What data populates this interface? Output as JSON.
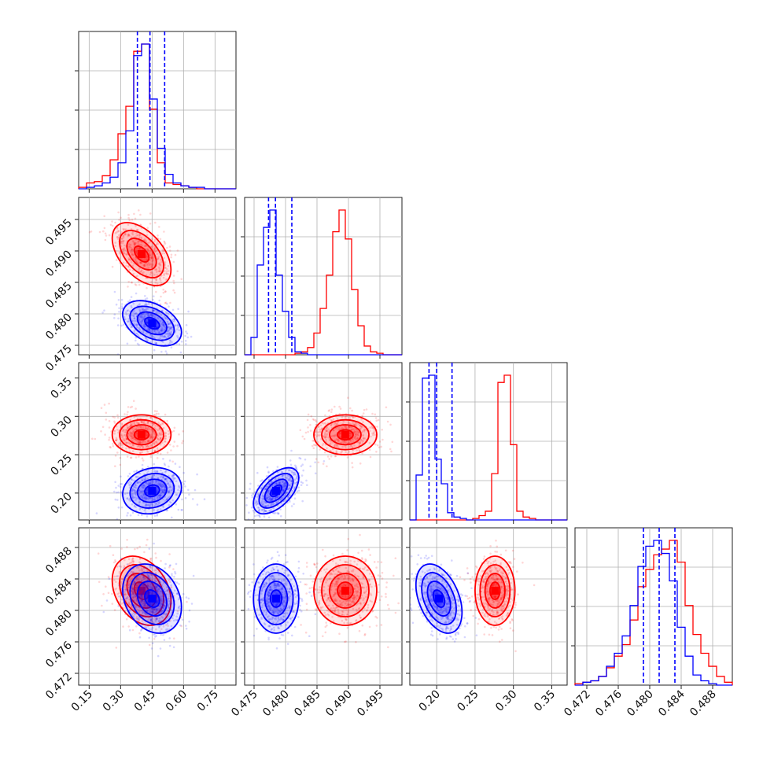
{
  "chart_data": {
    "type": "corner",
    "title": "",
    "grid": true,
    "colors": {
      "red": "#ff0000",
      "blue": "#0000ff"
    },
    "parameters": [
      {
        "ylim": [
          0.4735,
          0.4985
        ],
        "xlim": [
          0.1,
          0.85
        ],
        "ticks": [
          0.15,
          0.3,
          0.45,
          0.6,
          0.75
        ],
        "tick_labels": [
          "0.15",
          "0.30",
          "0.45",
          "0.60",
          "0.75"
        ]
      },
      {
        "xlim": [
          0.4735,
          0.4985
        ],
        "ticks": [
          0.475,
          0.48,
          0.485,
          0.49,
          0.495
        ],
        "tick_labels": [
          "0.475",
          "0.480",
          "0.485",
          "0.490",
          "0.495"
        ]
      },
      {
        "xlim": [
          0.165,
          0.37
        ],
        "ticks": [
          0.2,
          0.25,
          0.3,
          0.35
        ],
        "tick_labels": [
          "0.20",
          "0.25",
          "0.30",
          "0.35"
        ]
      },
      {
        "xlim": [
          0.4705,
          0.4905
        ],
        "ticks": [
          0.472,
          0.476,
          0.48,
          0.484,
          0.488
        ],
        "tick_labels": [
          "0.472",
          "0.476",
          "0.480",
          "0.484",
          "0.488"
        ]
      }
    ],
    "series": [
      {
        "color": "red",
        "mean": [
          0.4,
          0.4895,
          0.276,
          0.4825
        ],
        "std": [
          0.07,
          0.0025,
          0.013,
          0.0022
        ],
        "corr": {
          "0-1": -0.5,
          "0-2": 0.0,
          "0-3": -0.3,
          "1-2": 0.0,
          "1-3": 0.0,
          "2-3": 0.0
        },
        "histograms": [
          [
            0.01,
            0.04,
            0.05,
            0.09,
            0.2,
            0.38,
            0.57,
            0.95,
            1.0,
            0.55,
            0.18,
            0.04,
            0.03,
            0.02,
            0.01,
            0.0,
            0.0,
            0.0,
            0.0,
            0.0
          ],
          [
            0.0,
            0.0,
            0.0,
            0.0,
            0.0,
            0.0,
            0.0,
            0.0,
            0.01,
            0.02,
            0.05,
            0.15,
            0.32,
            0.55,
            0.85,
            1.0,
            0.8,
            0.45,
            0.2,
            0.06,
            0.02,
            0.01,
            0.0,
            0.0,
            0.0
          ],
          [
            0.0,
            0.0,
            0.0,
            0.0,
            0.0,
            0.0,
            0.0,
            0.0,
            0.0,
            0.0,
            0.01,
            0.03,
            0.06,
            0.32,
            0.95,
            1.0,
            0.52,
            0.06,
            0.02,
            0.01,
            0.0,
            0.0,
            0.0,
            0.0,
            0.0
          ],
          [
            0.01,
            0.02,
            0.03,
            0.06,
            0.12,
            0.2,
            0.28,
            0.45,
            0.68,
            0.8,
            0.9,
            0.94,
            1.0,
            0.85,
            0.55,
            0.35,
            0.22,
            0.13,
            0.06,
            0.02
          ]
        ]
      },
      {
        "color": "blue",
        "mean": [
          0.45,
          0.4785,
          0.203,
          0.4815
        ],
        "std": [
          0.07,
          0.0018,
          0.015,
          0.0022
        ],
        "corr": {
          "0-1": -0.4,
          "0-2": 0.15,
          "0-3": -0.25,
          "1-2": 0.55,
          "1-3": 0.0,
          "2-3": -0.4
        },
        "histograms": [
          [
            0.0,
            0.01,
            0.02,
            0.04,
            0.08,
            0.18,
            0.4,
            0.92,
            1.0,
            0.62,
            0.28,
            0.1,
            0.04,
            0.02,
            0.01,
            0.01,
            0.0,
            0.0,
            0.0,
            0.0
          ],
          [
            0.0,
            0.12,
            0.62,
            0.88,
            1.0,
            0.55,
            0.3,
            0.12,
            0.02,
            0.01,
            0.0,
            0.0,
            0.0,
            0.0,
            0.0,
            0.0,
            0.0,
            0.0,
            0.0,
            0.0,
            0.0,
            0.0,
            0.0,
            0.0,
            0.0
          ],
          [
            0.0,
            0.31,
            0.98,
            1.0,
            0.42,
            0.25,
            0.05,
            0.02,
            0.01,
            0.0,
            0.0,
            0.0,
            0.0,
            0.0,
            0.0,
            0.0,
            0.0,
            0.0,
            0.0,
            0.0,
            0.0,
            0.0,
            0.0,
            0.0,
            0.0
          ],
          [
            0.0,
            0.02,
            0.03,
            0.06,
            0.13,
            0.22,
            0.34,
            0.55,
            0.82,
            0.96,
            1.0,
            0.91,
            0.72,
            0.4,
            0.2,
            0.07,
            0.03,
            0.01,
            0.0,
            0.0
          ]
        ]
      }
    ],
    "quantile_lines": {
      "color": "blue",
      "style": "dashed",
      "values": [
        [
          0.38,
          0.44,
          0.51
        ],
        [
          0.4773,
          0.4784,
          0.481
        ],
        [
          0.19,
          0.2,
          0.22
        ],
        [
          0.4792,
          0.4812,
          0.4832
        ]
      ]
    },
    "contour_levels_sigma": [
      0.5,
      1.0,
      1.5,
      2.0
    ]
  }
}
